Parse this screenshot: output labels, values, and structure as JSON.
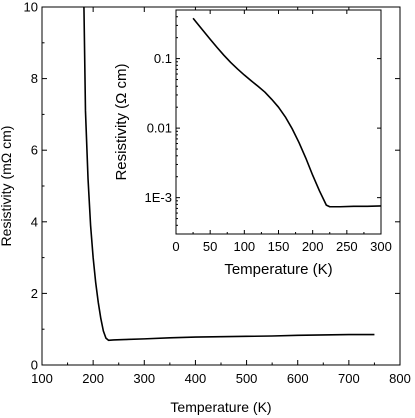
{
  "chart_data": [
    {
      "type": "line",
      "title": "",
      "xlabel": "Temperature (K)",
      "ylabel": "Resistivity (mΩ cm)",
      "xlim": [
        100,
        800
      ],
      "ylim": [
        0,
        10
      ],
      "x_ticks": [
        100,
        200,
        300,
        400,
        500,
        600,
        700,
        800
      ],
      "y_ticks": [
        0,
        2,
        4,
        6,
        8,
        10
      ],
      "x_tick_labels": [
        "100",
        "200",
        "300",
        "400",
        "500",
        "600",
        "700",
        "800"
      ],
      "y_tick_labels": [
        "0",
        "2",
        "4",
        "6",
        "8",
        "10"
      ],
      "grid": false,
      "legend": "none",
      "color": "#000000",
      "series": [
        {
          "x": [
            182,
            185,
            190,
            195,
            200,
            205,
            210,
            215,
            220,
            225,
            230,
            240,
            260,
            300,
            350,
            400,
            450,
            500,
            550,
            600,
            650,
            700,
            750
          ],
          "y": [
            10,
            7.1,
            5.2,
            3.9,
            3.0,
            2.3,
            1.75,
            1.3,
            0.95,
            0.75,
            0.69,
            0.7,
            0.71,
            0.73,
            0.76,
            0.78,
            0.79,
            0.8,
            0.81,
            0.83,
            0.84,
            0.85,
            0.85
          ]
        }
      ]
    },
    {
      "type": "line",
      "title": "",
      "xlabel": "Temperature (K)",
      "ylabel": "Resistivity (Ω cm)",
      "xlim": [
        0,
        300
      ],
      "ylim": [
        0.0003,
        0.5
      ],
      "y_scale": "log",
      "x_ticks": [
        0,
        50,
        100,
        150,
        200,
        250,
        300
      ],
      "y_ticks": [
        0.001,
        0.01,
        0.1
      ],
      "x_tick_labels": [
        "0",
        "50",
        "100",
        "150",
        "200",
        "250",
        "300"
      ],
      "y_tick_labels": [
        "1E-3",
        "0.01",
        "0.1"
      ],
      "grid": false,
      "legend": "none",
      "color": "#000000",
      "series": [
        {
          "x": [
            25,
            30,
            40,
            50,
            60,
            70,
            80,
            90,
            100,
            110,
            120,
            130,
            140,
            150,
            160,
            170,
            180,
            190,
            200,
            210,
            220,
            225,
            230,
            240,
            260,
            280,
            300
          ],
          "y": [
            0.38,
            0.33,
            0.25,
            0.19,
            0.145,
            0.112,
            0.088,
            0.071,
            0.058,
            0.048,
            0.04,
            0.033,
            0.026,
            0.02,
            0.0145,
            0.0098,
            0.0062,
            0.0037,
            0.0021,
            0.00125,
            0.00078,
            0.00074,
            0.00074,
            0.00074,
            0.00075,
            0.00075,
            0.00076
          ]
        }
      ]
    }
  ]
}
